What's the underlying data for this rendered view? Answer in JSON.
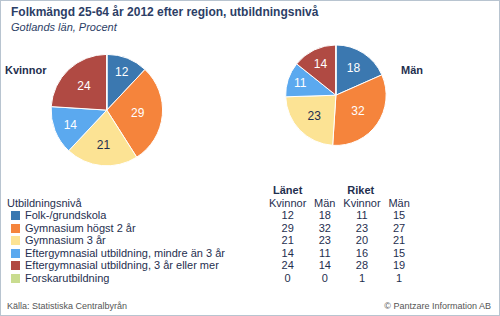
{
  "title": "Folkmängd 25-64 år 2012 efter region, utbildningsnivå",
  "subtitle": "Gotlands län, Procent",
  "chart_data": [
    {
      "type": "pie",
      "title": "Kvinnor",
      "categories": [
        "Folk-/grundskola",
        "Gymnasium högst 2 år",
        "Gymnasium 3 år",
        "Eftergymnasial utbildning, mindre än 3 år",
        "Eftergymnasial utbildning, 3 år eller mer",
        "Forskarutbildning"
      ],
      "values": [
        12,
        29,
        21,
        14,
        24,
        0
      ],
      "colors": [
        "#3b78b0",
        "#f5843c",
        "#fce394",
        "#5ba9ef",
        "#b04a43",
        "#c9dc8f"
      ],
      "data_labels": true
    },
    {
      "type": "pie",
      "title": "Män",
      "categories": [
        "Folk-/grundskola",
        "Gymnasium högst 2 år",
        "Gymnasium 3 år",
        "Eftergymnasial utbildning, mindre än 3 år",
        "Eftergymnasial utbildning, 3 år eller mer",
        "Forskarutbildning"
      ],
      "values": [
        18,
        32,
        23,
        11,
        14,
        0
      ],
      "colors": [
        "#3b78b0",
        "#f5843c",
        "#fce394",
        "#5ba9ef",
        "#b04a43",
        "#c9dc8f"
      ],
      "data_labels": true
    }
  ],
  "table": {
    "title": "Utbildningsnivå",
    "groups": [
      "Länet",
      "Riket"
    ],
    "columns": [
      "Kvinnor",
      "Män",
      "Kvinnor",
      "Män"
    ],
    "rows": [
      [
        12,
        18,
        11,
        15
      ],
      [
        29,
        32,
        23,
        27
      ],
      [
        21,
        23,
        20,
        21
      ],
      [
        14,
        11,
        16,
        15
      ],
      [
        24,
        14,
        28,
        19
      ],
      [
        0,
        0,
        1,
        1
      ]
    ]
  },
  "source": "Källa: Statistiska Centralbyrån",
  "copyright": "© Pantzare Information AB"
}
